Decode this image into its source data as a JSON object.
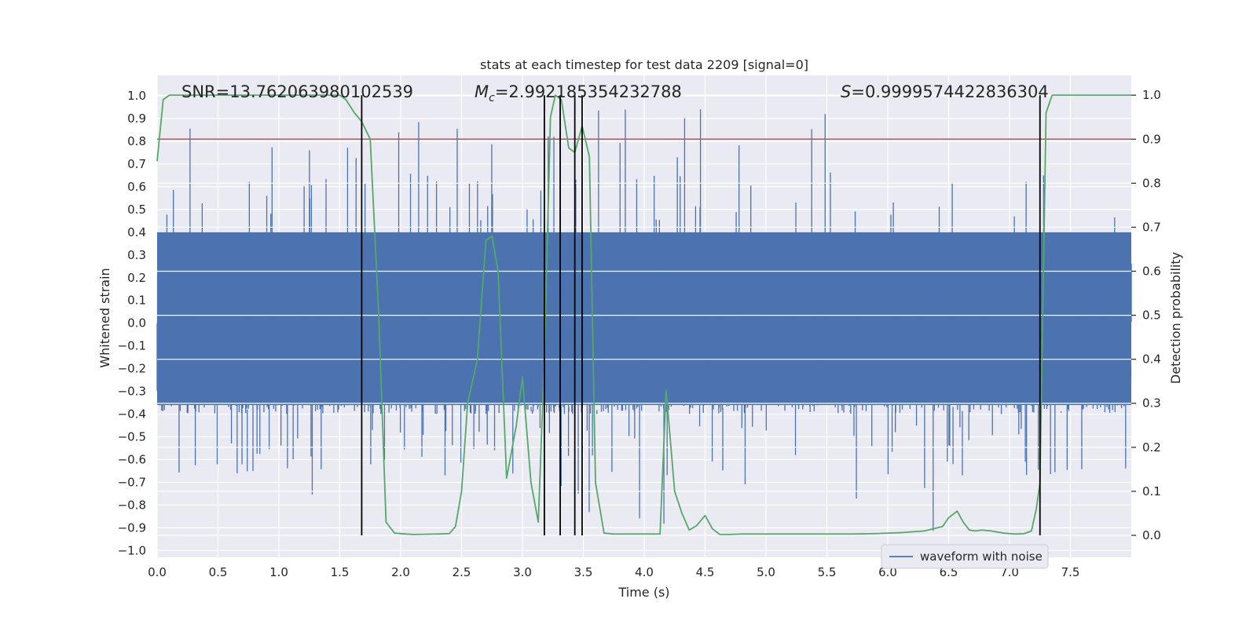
{
  "chart_data": {
    "type": "line",
    "title": "stats at each timestep for test data 2209 [signal=0]",
    "xlabel": "Time (s)",
    "ylabel_left": "Whitened strain",
    "ylabel_right": "Detection probability",
    "xlim": [
      0,
      8
    ],
    "ylim_left": [
      -1.03,
      1.09
    ],
    "ylim_right": [
      -0.05,
      1.045
    ],
    "x_ticks": [
      "0.0",
      "0.5",
      "1.0",
      "1.5",
      "2.0",
      "2.5",
      "3.0",
      "3.5",
      "4.0",
      "4.5",
      "5.0",
      "5.5",
      "6.0",
      "6.5",
      "7.0",
      "7.5"
    ],
    "y_ticks_left": [
      "1.0",
      "0.9",
      "0.8",
      "0.7",
      "0.6",
      "0.5",
      "0.4",
      "0.3",
      "0.2",
      "0.1",
      "0.0",
      "−0.1",
      "−0.2",
      "−0.3",
      "−0.4",
      "−0.5",
      "−0.6",
      "−0.7",
      "−0.8",
      "−0.9",
      "−1.0"
    ],
    "y_ticks_right": [
      "1.0",
      "0.9",
      "0.8",
      "0.7",
      "0.6",
      "0.5",
      "0.4",
      "0.3",
      "0.2",
      "0.1",
      "0.0"
    ],
    "grid": true,
    "legend": {
      "position": "bottom-right",
      "entries": [
        "waveform with noise"
      ]
    },
    "annotations": {
      "snr": "SNR=13.762063980102539",
      "mc_symbol": "M",
      "mc_sub": "c",
      "mc_value": "=2.992185354232788",
      "s_symbol": "S",
      "s_value": "=0.9999574422836304"
    },
    "threshold": {
      "value": 0.9,
      "axis": "right",
      "color": "#c44e52"
    },
    "vertical_lines_x": [
      1.68,
      3.18,
      3.31,
      3.43,
      3.49,
      7.25
    ],
    "noise_series": {
      "name": "waveform with noise",
      "color": "#4c72b0",
      "samples": 2400,
      "core_amplitude": 0.4,
      "spike_max": 0.95
    },
    "detection_probability": {
      "name": "detection probability",
      "color": "#55a868",
      "x": [
        0.0,
        0.05,
        0.1,
        0.2,
        0.4,
        0.6,
        0.8,
        1.0,
        1.2,
        1.4,
        1.5,
        1.55,
        1.62,
        1.68,
        1.75,
        1.82,
        1.88,
        1.95,
        2.1,
        2.3,
        2.4,
        2.45,
        2.5,
        2.55,
        2.63,
        2.7,
        2.75,
        2.8,
        2.87,
        2.95,
        3.0,
        3.07,
        3.13,
        3.18,
        3.23,
        3.27,
        3.32,
        3.38,
        3.43,
        3.49,
        3.55,
        3.6,
        3.67,
        3.75,
        3.9,
        4.05,
        4.13,
        4.18,
        4.25,
        4.31,
        4.37,
        4.43,
        4.5,
        4.56,
        4.62,
        4.7,
        4.8,
        4.95,
        5.1,
        5.3,
        5.5,
        5.7,
        5.9,
        6.1,
        6.3,
        6.45,
        6.5,
        6.57,
        6.62,
        6.67,
        6.72,
        6.77,
        6.85,
        6.95,
        7.05,
        7.12,
        7.18,
        7.22,
        7.25,
        7.3,
        7.35,
        7.45,
        7.6,
        7.8,
        8.0
      ],
      "y": [
        0.85,
        0.99,
        1.0,
        1.0,
        1.0,
        1.0,
        1.0,
        1.0,
        1.0,
        1.0,
        1.0,
        0.99,
        0.96,
        0.94,
        0.9,
        0.5,
        0.03,
        0.005,
        0.002,
        0.003,
        0.004,
        0.02,
        0.1,
        0.3,
        0.4,
        0.67,
        0.68,
        0.6,
        0.13,
        0.25,
        0.36,
        0.12,
        0.03,
        0.4,
        0.95,
        1.0,
        0.99,
        0.88,
        0.87,
        0.93,
        0.86,
        0.12,
        0.005,
        0.003,
        0.003,
        0.003,
        0.003,
        0.33,
        0.1,
        0.05,
        0.012,
        0.022,
        0.045,
        0.015,
        0.002,
        0.002,
        0.003,
        0.003,
        0.003,
        0.003,
        0.003,
        0.003,
        0.004,
        0.006,
        0.01,
        0.02,
        0.04,
        0.055,
        0.03,
        0.012,
        0.01,
        0.012,
        0.01,
        0.005,
        0.003,
        0.004,
        0.01,
        0.06,
        0.12,
        0.96,
        1.0,
        1.0,
        1.0,
        1.0,
        1.0
      ]
    }
  }
}
